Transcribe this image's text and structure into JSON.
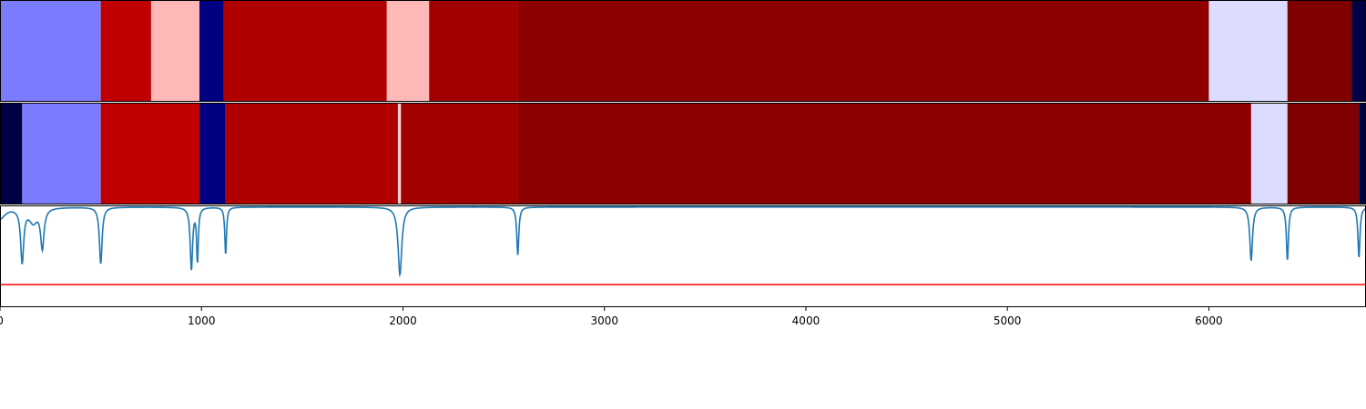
{
  "chart_data": [
    {
      "type": "heatmap",
      "row": "top",
      "xlim": [
        0,
        6780
      ],
      "segments": [
        {
          "start": 0,
          "end": 500,
          "color": "#7b7bff"
        },
        {
          "start": 500,
          "end": 750,
          "color": "#c00000"
        },
        {
          "start": 750,
          "end": 990,
          "color": "#ffb8b8"
        },
        {
          "start": 990,
          "end": 1110,
          "color": "#000080"
        },
        {
          "start": 1110,
          "end": 1920,
          "color": "#b00000"
        },
        {
          "start": 1920,
          "end": 2130,
          "color": "#ffb8b8"
        },
        {
          "start": 2130,
          "end": 2570,
          "color": "#a00000"
        },
        {
          "start": 2570,
          "end": 6000,
          "color": "#8e0000"
        },
        {
          "start": 6000,
          "end": 6390,
          "color": "#dcdcff"
        },
        {
          "start": 6390,
          "end": 6710,
          "color": "#7e0000"
        },
        {
          "start": 6710,
          "end": 6780,
          "color": "#000044"
        }
      ]
    },
    {
      "type": "heatmap",
      "row": "middle",
      "xlim": [
        0,
        6780
      ],
      "segments": [
        {
          "start": 0,
          "end": 110,
          "color": "#000044"
        },
        {
          "start": 110,
          "end": 500,
          "color": "#7b7bff"
        },
        {
          "start": 500,
          "end": 990,
          "color": "#c00000"
        },
        {
          "start": 990,
          "end": 1120,
          "color": "#000080"
        },
        {
          "start": 1120,
          "end": 1975,
          "color": "#b00000"
        },
        {
          "start": 1975,
          "end": 1990,
          "color": "#ffd0d0"
        },
        {
          "start": 1990,
          "end": 2570,
          "color": "#a00000"
        },
        {
          "start": 2570,
          "end": 6210,
          "color": "#8e0000"
        },
        {
          "start": 6210,
          "end": 6390,
          "color": "#dcdcff"
        },
        {
          "start": 6390,
          "end": 6745,
          "color": "#7e0000"
        },
        {
          "start": 6745,
          "end": 6780,
          "color": "#000044"
        }
      ]
    },
    {
      "type": "line",
      "row": "bottom",
      "xlim": [
        0,
        6780
      ],
      "ylim": [
        -0.35,
        0.01
      ],
      "xticks": [
        0,
        1000,
        2000,
        3000,
        4000,
        5000,
        6000
      ],
      "xtick_labels": [
        "0",
        "1000",
        "2000",
        "3000",
        "4000",
        "5000",
        "6000"
      ],
      "threshold": -0.27,
      "threshold_color": "#ff0000",
      "series_color": "#1f77b4",
      "dips": [
        {
          "x": 0,
          "depth": 0.04,
          "width": 60
        },
        {
          "x": 110,
          "depth": 0.19,
          "width": 18
        },
        {
          "x": 210,
          "depth": 0.14,
          "width": 20
        },
        {
          "x": 165,
          "depth": 0.05,
          "width": 50
        },
        {
          "x": 500,
          "depth": 0.2,
          "width": 16
        },
        {
          "x": 950,
          "depth": 0.22,
          "width": 14
        },
        {
          "x": 980,
          "depth": 0.19,
          "width": 10
        },
        {
          "x": 1120,
          "depth": 0.17,
          "width": 10
        },
        {
          "x": 1985,
          "depth": 0.24,
          "width": 22
        },
        {
          "x": 2570,
          "depth": 0.17,
          "width": 12
        },
        {
          "x": 6210,
          "depth": 0.19,
          "width": 16
        },
        {
          "x": 6390,
          "depth": 0.19,
          "width": 12
        },
        {
          "x": 6745,
          "depth": 0.18,
          "width": 12
        }
      ]
    }
  ]
}
